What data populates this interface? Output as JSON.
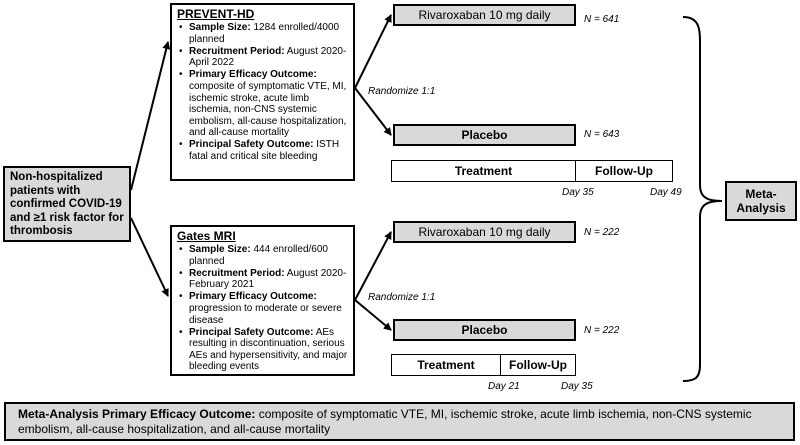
{
  "population": "Non-hospitalized patients with confirmed COVID-19 and ≥1 risk factor for thrombosis",
  "randomize_label": "Randomize 1:1",
  "meta_analysis_label": "Meta-Analysis",
  "trials": [
    {
      "name": "PREVENT-HD",
      "bullets": [
        {
          "label": "Sample Size:",
          "text": " 1284 enrolled/4000 planned"
        },
        {
          "label": "Recruitment Period:",
          "text": " August 2020-April 2022"
        },
        {
          "label": "Primary Efficacy Outcome:",
          "text": " composite of symptomatic VTE, MI, ischemic stroke, acute limb ischemia, non-CNS systemic embolism, all-cause hospitalization, and all-cause mortality"
        },
        {
          "label": "Principal Safety Outcome:",
          "text": " ISTH fatal and critical site bleeding"
        }
      ],
      "arms": [
        {
          "label": "Rivaroxaban 10 mg daily",
          "n": "N = 641"
        },
        {
          "label": "Placebo",
          "n": "N = 643"
        }
      ],
      "timeline": {
        "treatment": "Treatment",
        "followup": "Follow-Up",
        "day_mid": "Day 35",
        "day_end": "Day 49"
      }
    },
    {
      "name": "Gates MRI",
      "bullets": [
        {
          "label": "Sample Size:",
          "text": " 444 enrolled/600 planned"
        },
        {
          "label": "Recruitment Period:",
          "text": " August 2020-February 2021"
        },
        {
          "label": "Primary Efficacy Outcome:",
          "text": " progression to moderate or severe disease"
        },
        {
          "label": "Principal Safety Outcome:",
          "text": " AEs resulting in discontinuation, serious AEs and hypersensitivity, and major bleeding events"
        }
      ],
      "arms": [
        {
          "label": "Rivaroxaban 10 mg daily",
          "n": "N = 222"
        },
        {
          "label": "Placebo",
          "n": "N = 222"
        }
      ],
      "timeline": {
        "treatment": "Treatment",
        "followup": "Follow-Up",
        "day_mid": "Day 21",
        "day_end": "Day 35"
      }
    }
  ],
  "meta_outcome": {
    "label": "Meta-Analysis Primary Efficacy Outcome:",
    "text": " composite of symptomatic VTE, MI, ischemic stroke, acute limb ischemia, non-CNS systemic embolism, all-cause hospitalization, and all-cause mortality"
  },
  "colors": {
    "box_fill": "#d9d9d9",
    "line": "#000000"
  }
}
